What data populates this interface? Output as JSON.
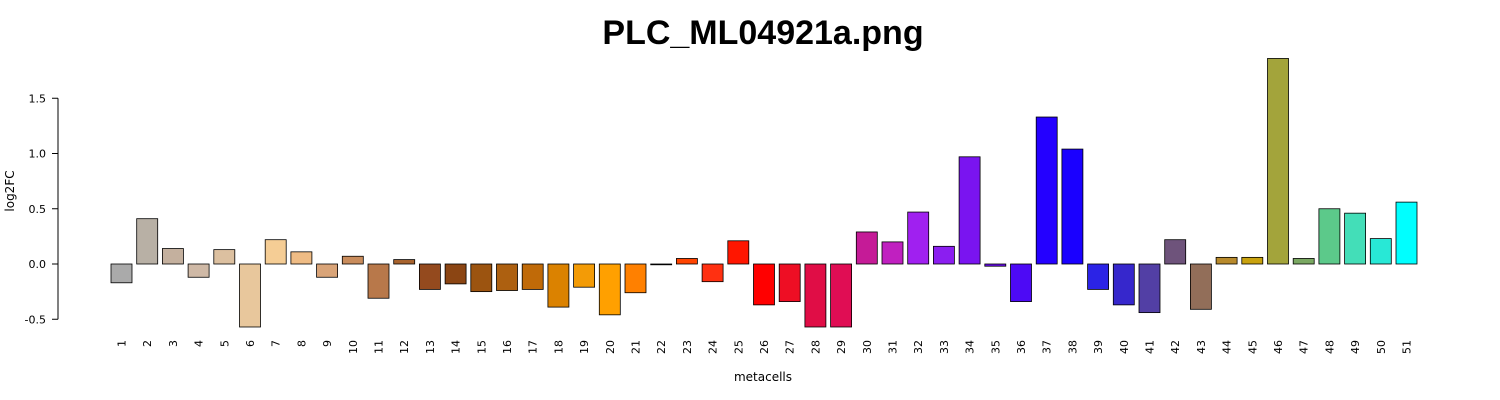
{
  "chart_data": {
    "type": "bar",
    "title": "PLC_ML04921a.png",
    "xlabel": "metacells",
    "ylabel": "log2FC",
    "ylim": [
      -0.6,
      1.9
    ],
    "yticks": [
      -0.5,
      0.0,
      0.5,
      1.0,
      1.5
    ],
    "ytick_labels": [
      "-0.5",
      "0.0",
      "0.5",
      "1.0",
      "1.5"
    ],
    "categories": [
      "1",
      "2",
      "3",
      "4",
      "5",
      "6",
      "7",
      "8",
      "9",
      "10",
      "11",
      "12",
      "13",
      "14",
      "15",
      "16",
      "17",
      "18",
      "19",
      "20",
      "21",
      "22",
      "23",
      "24",
      "25",
      "26",
      "27",
      "28",
      "29",
      "30",
      "31",
      "32",
      "33",
      "34",
      "35",
      "36",
      "37",
      "38",
      "39",
      "40",
      "41",
      "42",
      "43",
      "44",
      "45",
      "46",
      "47",
      "48",
      "49",
      "50",
      "51"
    ],
    "values": [
      -0.17,
      0.41,
      0.14,
      -0.12,
      0.13,
      -0.57,
      0.22,
      0.11,
      -0.12,
      0.07,
      -0.31,
      0.04,
      -0.23,
      -0.18,
      -0.25,
      -0.24,
      -0.23,
      -0.39,
      -0.21,
      -0.46,
      -0.26,
      0.0,
      0.05,
      -0.16,
      0.21,
      -0.37,
      -0.34,
      -0.57,
      -0.57,
      0.29,
      0.2,
      0.47,
      0.16,
      0.97,
      -0.02,
      -0.34,
      1.33,
      1.04,
      -0.23,
      -0.37,
      -0.44,
      0.22,
      -0.41,
      0.06,
      0.06,
      1.86,
      0.05,
      0.5,
      0.46,
      0.23,
      0.56
    ],
    "colors": [
      "#aaaaaa",
      "#b8b0a5",
      "#c4b09e",
      "#cfb9a6",
      "#dcc0a0",
      "#e8c79c",
      "#f5cd95",
      "#efbc85",
      "#d9a478",
      "#c98c5c",
      "#b8784a",
      "#a8632e",
      "#944a1e",
      "#8b4513",
      "#9c5410",
      "#ad6010",
      "#c06a08",
      "#db8200",
      "#f39b06",
      "#ffa000",
      "#ff8000",
      "#ff6000",
      "#ff4400",
      "#ff3011",
      "#ff1600",
      "#ff0000",
      "#ee0e24",
      "#e00d46",
      "#e00d54",
      "#c51b97",
      "#c020c0",
      "#a020f0",
      "#8b1ef0",
      "#7a14f0",
      "#6a0df0",
      "#4d0af5",
      "#2400ff",
      "#1a00ff",
      "#2b23e6",
      "#3627cc",
      "#523fa5",
      "#6e537b",
      "#926e59",
      "#b88a2c",
      "#c9a20e",
      "#a3a43b",
      "#7aa862",
      "#5cc98a",
      "#43deb8",
      "#28e8d6",
      "#00ffff"
    ]
  }
}
